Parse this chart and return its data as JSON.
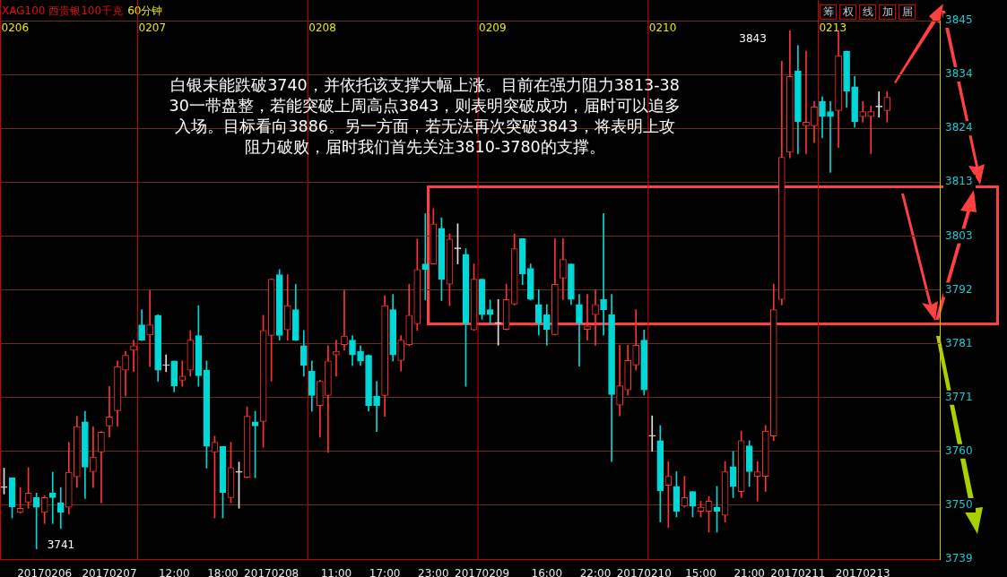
{
  "chart_data": {
    "type": "candlestick",
    "title": "XAG100 西贵银100千克",
    "subtitle": "60分钟",
    "annotations": [
      "白银未能跌破3740，并依托该支撑大幅上涨。目前在强力阻力3813-3830一带盘整，若能突破上周高点3843，则表明突破成功，届时可以追多入场。目标看向3886。另一方面，若无法再次突破3843，将表明上攻阻力破败，届时我们首先关注3810-3780的支撑。",
      "3741",
      "3843",
      "0206",
      "0207",
      "0208",
      "0209",
      "0210",
      "0213",
      "筹",
      "权",
      "线",
      "加",
      "届"
    ],
    "categories": [
      null,
      null,
      null,
      null,
      null,
      "20170206",
      null,
      null,
      null,
      null,
      null,
      null,
      null,
      "20170207",
      null,
      null,
      null,
      null,
      null,
      null,
      null,
      "12:00",
      null,
      null,
      null,
      null,
      null,
      "18:00",
      null,
      null,
      null,
      null,
      null,
      "20170208",
      null,
      null,
      null,
      null,
      null,
      null,
      null,
      "11:00",
      null,
      null,
      null,
      null,
      null,
      "17:00",
      null,
      null,
      null,
      null,
      null,
      "23:00",
      null,
      null,
      null,
      null,
      null,
      "20170209",
      null,
      null,
      null,
      null,
      null,
      null,
      null,
      "16:00",
      null,
      null,
      null,
      null,
      null,
      "22:00",
      null,
      null,
      null,
      null,
      null,
      "20170210",
      null,
      null,
      null,
      null,
      null,
      null,
      "15:00",
      null,
      null,
      null,
      null,
      null,
      "21:00",
      null,
      null,
      null,
      null,
      null,
      "20170211",
      null,
      null,
      null,
      null,
      null,
      null,
      null,
      "20170213",
      null,
      null,
      null,
      null,
      null,
      null,
      null,
      null,
      null
    ],
    "ohlc": [
      [
        3753.1,
        3756.9,
        3751.8,
        3753.1
      ],
      [
        3755.0,
        3755.0,
        3747.1,
        3749.3
      ],
      [
        3748.2,
        3753.1,
        3748.0,
        3749.0
      ],
      [
        3750.2,
        3757.0,
        3749.0,
        3752.0
      ],
      [
        3751.1,
        3752.0,
        3741,
        3749.2
      ],
      [
        3748.2,
        3751.5,
        3746.0,
        3751.1
      ],
      [
        3752.0,
        3756.1,
        3746.0,
        3751.1
      ],
      [
        3750.1,
        3753.1,
        3745.0,
        3748.2
      ],
      [
        3749.2,
        3762.0,
        3747.9,
        3756.1
      ],
      [
        3755.2,
        3767.1,
        3753.1,
        3765.1
      ],
      [
        3766.0,
        3768.1,
        3750.9,
        3757.1
      ],
      [
        3756.2,
        3765.1,
        3753.1,
        3759.1
      ],
      [
        3760.1,
        3764.1,
        3750.1,
        3764.0
      ],
      [
        3765.2,
        3773.0,
        3763.0,
        3767.0
      ],
      [
        3768.2,
        3778.0,
        3765.1,
        3776.9
      ],
      [
        3776.2,
        3779.9,
        3771.1,
        3779.1
      ],
      [
        3780.1,
        3782.1,
        3775.9,
        3781.0
      ],
      [
        3785.1,
        3788.1,
        3782.0,
        3782.1
      ],
      [
        3783.1,
        3791.9,
        3776.9,
        3785.1
      ],
      [
        3787.0,
        3787.1,
        3774.0,
        3776.2
      ],
      [
        3777.1,
        3779.2,
        3775.9,
        3777.1
      ],
      [
        3778.0,
        3778.0,
        3771.9,
        3773.1
      ],
      [
        3774.2,
        3778.0,
        3773.0,
        3775.0
      ],
      [
        3776.2,
        3784.0,
        3775.0,
        3782.1
      ],
      [
        3783.0,
        3788.9,
        3773.0,
        3775.1
      ],
      [
        3776.2,
        3778.0,
        3756.9,
        3761.2
      ],
      [
        3760.1,
        3763.2,
        3747.1,
        3762.0
      ],
      [
        3761.2,
        3761.2,
        3747.1,
        3752.1
      ],
      [
        3751.1,
        3762.0,
        3750.1,
        3757.0
      ],
      [
        3756.1,
        3758.1,
        3749.0,
        3756.1
      ],
      [
        3755.1,
        3769.0,
        3755.0,
        3767.1
      ],
      [
        3766.0,
        3768.1,
        3755.0,
        3765.2
      ],
      [
        3766.1,
        3787.0,
        3761.0,
        3784.0
      ],
      [
        3783.0,
        3794.2,
        3774.0,
        3794.1
      ],
      [
        3795.0,
        3796.0,
        3782.1,
        3783.0
      ],
      [
        3784.1,
        3795.0,
        3782.1,
        3788.9
      ],
      [
        3788.1,
        3793.1,
        3782.0,
        3782.1
      ],
      [
        3781.0,
        3784.0,
        3775.0,
        3777.1
      ],
      [
        3776.0,
        3778.0,
        3768.1,
        3771.2
      ],
      [
        3769.2,
        3774.2,
        3763.0,
        3774.0
      ],
      [
        3771.2,
        3781.0,
        3760.0,
        3778.0
      ],
      [
        3779.2,
        3782.1,
        3775.0,
        3779.9
      ],
      [
        3781.2,
        3791.9,
        3780.1,
        3782.9
      ],
      [
        3782.1,
        3783.0,
        3777.1,
        3779.2
      ],
      [
        3779.9,
        3781.0,
        3777.1,
        3778.0
      ],
      [
        3779.1,
        3779.2,
        3768.1,
        3769.2
      ],
      [
        3771.1,
        3774.0,
        3764.1,
        3769.2
      ],
      [
        3771.2,
        3790.9,
        3767.1,
        3788.9
      ],
      [
        3788.1,
        3791.1,
        3778.0,
        3779.2
      ],
      [
        3778.1,
        3783.0,
        3776.0,
        3782.1
      ],
      [
        3781.2,
        3793.1,
        3781.0,
        3787.0
      ],
      [
        3785.3,
        3802.0,
        3784.0,
        3796.0
      ],
      [
        3797.1,
        3807.0,
        3790.0,
        3796.0
      ],
      [
        3797.1,
        3808.0,
        3797.1,
        3805.0
      ],
      [
        3804.1,
        3806.2,
        3789.9,
        3794.1
      ],
      [
        3793.1,
        3803.0,
        3788.9,
        3802.0
      ],
      [
        3800.1,
        3805.0,
        3797.1,
        3800.1
      ],
      [
        3799.0,
        3800.1,
        3773.0,
        3785.3
      ],
      [
        3784.1,
        3797.1,
        3784.0,
        3794.1
      ],
      [
        3794.1,
        3794.1,
        3786.2,
        3787.1
      ],
      [
        3788.1,
        3790.0,
        3785.3,
        3787.1
      ],
      [
        3785.4,
        3790.1,
        3781.1,
        3785.4
      ],
      [
        3784.2,
        3793.1,
        3784.1,
        3790.1
      ],
      [
        3789.2,
        3803.0,
        3789.0,
        3800.1
      ],
      [
        3802.1,
        3802.1,
        3793.0,
        3795.1
      ],
      [
        3796.2,
        3797.1,
        3790.0,
        3790.1
      ],
      [
        3789.1,
        3792.0,
        3783.1,
        3785.4
      ],
      [
        3787.1,
        3789.1,
        3781.1,
        3784.2
      ],
      [
        3783.2,
        3802.1,
        3783.1,
        3793.1
      ],
      [
        3794.3,
        3802.1,
        3790.1,
        3798.0
      ],
      [
        3797.1,
        3797.1,
        3789.1,
        3790.1
      ],
      [
        3789.1,
        3791.1,
        3777.0,
        3785.4
      ],
      [
        3784.2,
        3791.1,
        3782.1,
        3784.9
      ],
      [
        3787.1,
        3792.0,
        3781.1,
        3789.1
      ],
      [
        3790.1,
        3807.0,
        3783.1,
        3788.1
      ],
      [
        3787.1,
        3791.1,
        3758.2,
        3771.4
      ],
      [
        3769.3,
        3781.1,
        3767.2,
        3773.1
      ],
      [
        3772.3,
        3781.1,
        3771.3,
        3778.1
      ],
      [
        3777.2,
        3788.1,
        3776.2,
        3781.1
      ],
      [
        3782.1,
        3784.1,
        3771.3,
        3772.3
      ],
      [
        3763.2,
        3767.2,
        3760.2,
        3763.2
      ],
      [
        3762.3,
        3765.3,
        3746.3,
        3752.4
      ],
      [
        3753.5,
        3758.2,
        3745.2,
        3755.3
      ],
      [
        3753.3,
        3756.2,
        3747.3,
        3748.4
      ],
      [
        3749.4,
        3755.3,
        3749.2,
        3751.1
      ],
      [
        3752.3,
        3752.3,
        3747.3,
        3749.4
      ],
      [
        3748.4,
        3750.4,
        3747.3,
        3749.2
      ],
      [
        3748.4,
        3751.3,
        3744.3,
        3750.4
      ],
      [
        3749.2,
        3753.3,
        3744.3,
        3748.4
      ],
      [
        3747.6,
        3758.2,
        3746.3,
        3756.2
      ],
      [
        3757.2,
        3760.2,
        3751.1,
        3753.3
      ],
      [
        3752.3,
        3764.2,
        3751.1,
        3762.3
      ],
      [
        3761.3,
        3762.3,
        3753.3,
        3756.2
      ],
      [
        3755.3,
        3758.2,
        3750.4,
        3756.2
      ],
      [
        3755.3,
        3765.3,
        3752.3,
        3764.2
      ],
      [
        3763.2,
        3793.1,
        3762.3,
        3788.1
      ],
      [
        3790.1,
        3837.0,
        3789.0,
        3818.1
      ],
      [
        3819.1,
        3843,
        3818.0,
        3834.0
      ],
      [
        3835.1,
        3840.1,
        3818.8,
        3825.1
      ],
      [
        3824.3,
        3839.0,
        3818.8,
        3825.0
      ],
      [
        3824.3,
        3829.1,
        3821.0,
        3828.0
      ],
      [
        3829.1,
        3830.0,
        3821.9,
        3826.1
      ],
      [
        3827.1,
        3829.1,
        3815.1,
        3826.1
      ],
      [
        3827.3,
        3842.9,
        3820.0,
        3838.1
      ],
      [
        3839.0,
        3839.0,
        3827.9,
        3831.1
      ],
      [
        3832.0,
        3834.0,
        3824.0,
        3825.1
      ],
      [
        3826.1,
        3829.1,
        3825.0,
        3827.1
      ],
      [
        3826.1,
        3828.2,
        3818.8,
        3827.1
      ],
      [
        3828.0,
        3831.0,
        3826.0,
        3828.0
      ],
      [
        3827.3,
        3831.0,
        3825.0,
        3829.9
      ],
      null,
      null,
      null,
      null,
      null,
      null
    ],
    "ylim": [
      3739,
      3845
    ],
    "yticks": [
      3739,
      {
        "value": 3749.6,
        "label": "3750"
      },
      {
        "value": 3760.2,
        "label": "3760"
      },
      {
        "value": 3770.8,
        "label": "3771"
      },
      {
        "value": 3781.4,
        "label": "3781"
      },
      3792,
      {
        "value": 3802.6,
        "label": "3803"
      },
      {
        "value": 3813.2,
        "label": "3813"
      },
      {
        "value": 3823.8,
        "label": "3824"
      },
      {
        "value": 3834.4,
        "label": "3834"
      },
      3845
    ],
    "grid": "y",
    "legend": false
  }
}
